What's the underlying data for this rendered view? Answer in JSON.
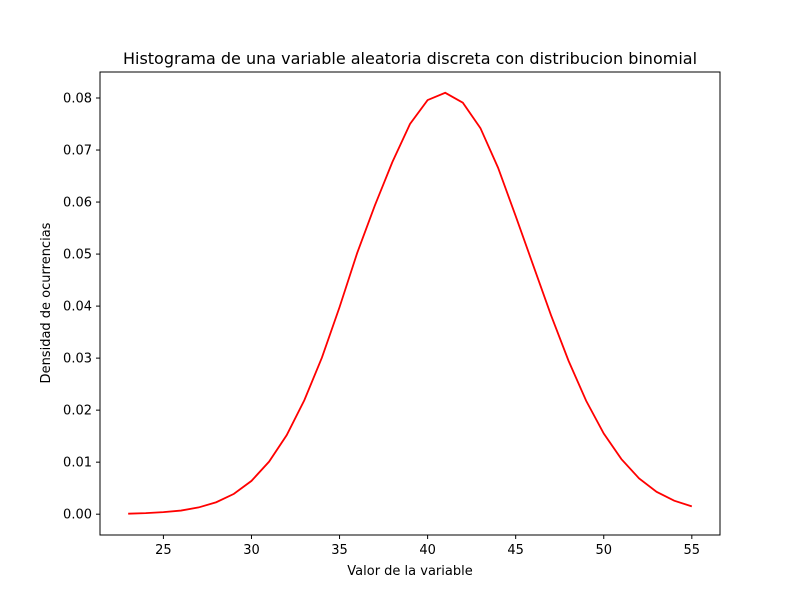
{
  "chart_data": {
    "type": "line",
    "title": "Histograma de una variable aleatoria discreta con distribucion binomial",
    "xlabel": "Valor de la variable",
    "ylabel": "Densidad de ocurrencias",
    "xlim": [
      21.4,
      56.6
    ],
    "ylim": [
      -0.004,
      0.085
    ],
    "x_ticks": [
      25,
      30,
      35,
      40,
      45,
      50,
      55
    ],
    "y_ticks": [
      0.0,
      0.01,
      0.02,
      0.03,
      0.04,
      0.05,
      0.06,
      0.07,
      0.08
    ],
    "x_tick_labels": [
      "25",
      "30",
      "35",
      "40",
      "45",
      "50",
      "55"
    ],
    "y_tick_labels": [
      "0.00",
      "0.01",
      "0.02",
      "0.03",
      "0.04",
      "0.05",
      "0.06",
      "0.07",
      "0.08"
    ],
    "grid": false,
    "line_color": "#ff0000",
    "series": [
      {
        "x": [
          23,
          24,
          25,
          26,
          27,
          28,
          29,
          30,
          31,
          32,
          33,
          34,
          35,
          36,
          37,
          38,
          39,
          40,
          41,
          42,
          43,
          44,
          45,
          46,
          47,
          48,
          49,
          50,
          51,
          52,
          53,
          54,
          55
        ],
        "values": [
          0.0001,
          0.0002,
          0.0004,
          0.0007,
          0.0013,
          0.0023,
          0.0039,
          0.0064,
          0.0101,
          0.0152,
          0.0219,
          0.0301,
          0.0398,
          0.0502,
          0.0593,
          0.0677,
          0.075,
          0.0796,
          0.081,
          0.0791,
          0.0742,
          0.0666,
          0.0573,
          0.0478,
          0.0383,
          0.0295,
          0.0218,
          0.0155,
          0.0106,
          0.0069,
          0.0043,
          0.0026,
          0.0015
        ]
      }
    ]
  }
}
